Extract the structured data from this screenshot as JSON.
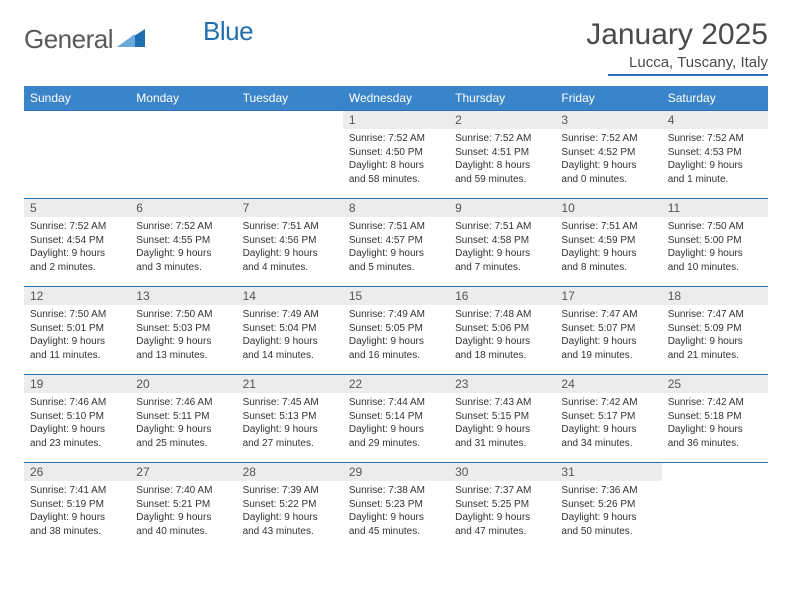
{
  "logo": {
    "text_general": "General",
    "text_blue": "Blue"
  },
  "title": "January 2025",
  "location": "Lucca, Tuscany, Italy",
  "colors": {
    "header_bg": "#3a85c9",
    "header_text": "#ffffff",
    "border": "#2d6fb5",
    "daynum_bg": "#ececec",
    "text": "#333333",
    "logo_gray": "#5a5a5a",
    "logo_blue": "#1f6fb0"
  },
  "weekdays": [
    "Sunday",
    "Monday",
    "Tuesday",
    "Wednesday",
    "Thursday",
    "Friday",
    "Saturday"
  ],
  "cells": [
    {
      "day": "",
      "sunrise": "",
      "sunset": "",
      "daylight": ""
    },
    {
      "day": "",
      "sunrise": "",
      "sunset": "",
      "daylight": ""
    },
    {
      "day": "",
      "sunrise": "",
      "sunset": "",
      "daylight": ""
    },
    {
      "day": "1",
      "sunrise": "Sunrise: 7:52 AM",
      "sunset": "Sunset: 4:50 PM",
      "daylight": "Daylight: 8 hours and 58 minutes."
    },
    {
      "day": "2",
      "sunrise": "Sunrise: 7:52 AM",
      "sunset": "Sunset: 4:51 PM",
      "daylight": "Daylight: 8 hours and 59 minutes."
    },
    {
      "day": "3",
      "sunrise": "Sunrise: 7:52 AM",
      "sunset": "Sunset: 4:52 PM",
      "daylight": "Daylight: 9 hours and 0 minutes."
    },
    {
      "day": "4",
      "sunrise": "Sunrise: 7:52 AM",
      "sunset": "Sunset: 4:53 PM",
      "daylight": "Daylight: 9 hours and 1 minute."
    },
    {
      "day": "5",
      "sunrise": "Sunrise: 7:52 AM",
      "sunset": "Sunset: 4:54 PM",
      "daylight": "Daylight: 9 hours and 2 minutes."
    },
    {
      "day": "6",
      "sunrise": "Sunrise: 7:52 AM",
      "sunset": "Sunset: 4:55 PM",
      "daylight": "Daylight: 9 hours and 3 minutes."
    },
    {
      "day": "7",
      "sunrise": "Sunrise: 7:51 AM",
      "sunset": "Sunset: 4:56 PM",
      "daylight": "Daylight: 9 hours and 4 minutes."
    },
    {
      "day": "8",
      "sunrise": "Sunrise: 7:51 AM",
      "sunset": "Sunset: 4:57 PM",
      "daylight": "Daylight: 9 hours and 5 minutes."
    },
    {
      "day": "9",
      "sunrise": "Sunrise: 7:51 AM",
      "sunset": "Sunset: 4:58 PM",
      "daylight": "Daylight: 9 hours and 7 minutes."
    },
    {
      "day": "10",
      "sunrise": "Sunrise: 7:51 AM",
      "sunset": "Sunset: 4:59 PM",
      "daylight": "Daylight: 9 hours and 8 minutes."
    },
    {
      "day": "11",
      "sunrise": "Sunrise: 7:50 AM",
      "sunset": "Sunset: 5:00 PM",
      "daylight": "Daylight: 9 hours and 10 minutes."
    },
    {
      "day": "12",
      "sunrise": "Sunrise: 7:50 AM",
      "sunset": "Sunset: 5:01 PM",
      "daylight": "Daylight: 9 hours and 11 minutes."
    },
    {
      "day": "13",
      "sunrise": "Sunrise: 7:50 AM",
      "sunset": "Sunset: 5:03 PM",
      "daylight": "Daylight: 9 hours and 13 minutes."
    },
    {
      "day": "14",
      "sunrise": "Sunrise: 7:49 AM",
      "sunset": "Sunset: 5:04 PM",
      "daylight": "Daylight: 9 hours and 14 minutes."
    },
    {
      "day": "15",
      "sunrise": "Sunrise: 7:49 AM",
      "sunset": "Sunset: 5:05 PM",
      "daylight": "Daylight: 9 hours and 16 minutes."
    },
    {
      "day": "16",
      "sunrise": "Sunrise: 7:48 AM",
      "sunset": "Sunset: 5:06 PM",
      "daylight": "Daylight: 9 hours and 18 minutes."
    },
    {
      "day": "17",
      "sunrise": "Sunrise: 7:47 AM",
      "sunset": "Sunset: 5:07 PM",
      "daylight": "Daylight: 9 hours and 19 minutes."
    },
    {
      "day": "18",
      "sunrise": "Sunrise: 7:47 AM",
      "sunset": "Sunset: 5:09 PM",
      "daylight": "Daylight: 9 hours and 21 minutes."
    },
    {
      "day": "19",
      "sunrise": "Sunrise: 7:46 AM",
      "sunset": "Sunset: 5:10 PM",
      "daylight": "Daylight: 9 hours and 23 minutes."
    },
    {
      "day": "20",
      "sunrise": "Sunrise: 7:46 AM",
      "sunset": "Sunset: 5:11 PM",
      "daylight": "Daylight: 9 hours and 25 minutes."
    },
    {
      "day": "21",
      "sunrise": "Sunrise: 7:45 AM",
      "sunset": "Sunset: 5:13 PM",
      "daylight": "Daylight: 9 hours and 27 minutes."
    },
    {
      "day": "22",
      "sunrise": "Sunrise: 7:44 AM",
      "sunset": "Sunset: 5:14 PM",
      "daylight": "Daylight: 9 hours and 29 minutes."
    },
    {
      "day": "23",
      "sunrise": "Sunrise: 7:43 AM",
      "sunset": "Sunset: 5:15 PM",
      "daylight": "Daylight: 9 hours and 31 minutes."
    },
    {
      "day": "24",
      "sunrise": "Sunrise: 7:42 AM",
      "sunset": "Sunset: 5:17 PM",
      "daylight": "Daylight: 9 hours and 34 minutes."
    },
    {
      "day": "25",
      "sunrise": "Sunrise: 7:42 AM",
      "sunset": "Sunset: 5:18 PM",
      "daylight": "Daylight: 9 hours and 36 minutes."
    },
    {
      "day": "26",
      "sunrise": "Sunrise: 7:41 AM",
      "sunset": "Sunset: 5:19 PM",
      "daylight": "Daylight: 9 hours and 38 minutes."
    },
    {
      "day": "27",
      "sunrise": "Sunrise: 7:40 AM",
      "sunset": "Sunset: 5:21 PM",
      "daylight": "Daylight: 9 hours and 40 minutes."
    },
    {
      "day": "28",
      "sunrise": "Sunrise: 7:39 AM",
      "sunset": "Sunset: 5:22 PM",
      "daylight": "Daylight: 9 hours and 43 minutes."
    },
    {
      "day": "29",
      "sunrise": "Sunrise: 7:38 AM",
      "sunset": "Sunset: 5:23 PM",
      "daylight": "Daylight: 9 hours and 45 minutes."
    },
    {
      "day": "30",
      "sunrise": "Sunrise: 7:37 AM",
      "sunset": "Sunset: 5:25 PM",
      "daylight": "Daylight: 9 hours and 47 minutes."
    },
    {
      "day": "31",
      "sunrise": "Sunrise: 7:36 AM",
      "sunset": "Sunset: 5:26 PM",
      "daylight": "Daylight: 9 hours and 50 minutes."
    },
    {
      "day": "",
      "sunrise": "",
      "sunset": "",
      "daylight": ""
    }
  ]
}
